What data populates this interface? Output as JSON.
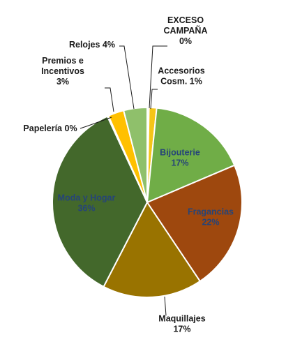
{
  "chart_data": {
    "type": "pie",
    "title": "",
    "start_angle_deg": 0,
    "direction": "clockwise",
    "slices": [
      {
        "name": "EXCESO CAMPAÑA",
        "value": 0.3,
        "pct_label": "0%",
        "color": "#f2f2f2",
        "label_lines": [
          "EXCESO",
          "CAMPAÑA",
          "0%"
        ]
      },
      {
        "name": "Accesorios Cosm.",
        "value": 1.3,
        "pct_label": "1%",
        "color": "#f5c518",
        "label_lines": [
          "Accesorios",
          "Cosm. 1%"
        ]
      },
      {
        "name": "Bijouterie",
        "value": 17,
        "pct_label": "17%",
        "color": "#70ad47",
        "label_lines": [
          "Bijouterie",
          "17%"
        ]
      },
      {
        "name": "Fragancias",
        "value": 22,
        "pct_label": "22%",
        "color": "#9e480e",
        "label_lines": [
          "Fragancias",
          "22%"
        ]
      },
      {
        "name": "Maquillajes",
        "value": 17,
        "pct_label": "17%",
        "color": "#997300",
        "label_lines": [
          "Maquillajes",
          "17%"
        ]
      },
      {
        "name": "Moda y Hogar",
        "value": 35.5,
        "pct_label": "36%",
        "color": "#43682b",
        "label_lines": [
          "Moda y Hogar",
          "36%"
        ]
      },
      {
        "name": "Papelería",
        "value": 0.2,
        "pct_label": "0%",
        "color": "#264478",
        "label_lines": [
          "Papelería 0%"
        ]
      },
      {
        "name": "Premios e Incentivos",
        "value": 2.7,
        "pct_label": "3%",
        "color": "#ffc000",
        "label_lines": [
          "Premios e",
          "Incentivos",
          "3%"
        ]
      },
      {
        "name": "Relojes",
        "value": 4,
        "pct_label": "4%",
        "color": "#8fc06b",
        "label_lines": [
          "Relojes 4%"
        ]
      }
    ],
    "legend": "none"
  }
}
